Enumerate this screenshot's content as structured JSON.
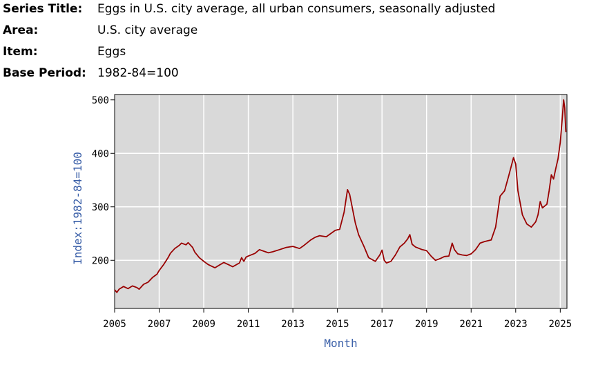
{
  "meta": {
    "series_title_label": "Series Title:",
    "series_title_value": "Eggs in U.S. city average, all urban consumers, seasonally adjusted",
    "area_label": "Area:",
    "area_value": "U.S. city average",
    "item_label": "Item:",
    "item_value": "Eggs",
    "base_period_label": "Base Period:",
    "base_period_value": "1982-84=100"
  },
  "colors": {
    "plot_background": "#d9d9d9",
    "grid": "#ffffff",
    "line": "#990000",
    "axis_title": "#3a5fa8"
  },
  "chart_data": {
    "type": "line",
    "title": "Eggs in U.S. city average, all urban consumers, seasonally adjusted",
    "xlabel": "Month",
    "ylabel": "Index:1982-84=100",
    "xlim": [
      2005,
      2025.3
    ],
    "ylim": [
      110,
      510
    ],
    "x_ticks": [
      2005,
      2007,
      2009,
      2011,
      2013,
      2015,
      2017,
      2019,
      2021,
      2023,
      2025
    ],
    "x_tick_labels": [
      "2005",
      "2007",
      "2009",
      "2011",
      "2013",
      "2015",
      "2017",
      "2019",
      "2021",
      "2023",
      "2025"
    ],
    "x_grid": [
      2005,
      2007,
      2009,
      2011,
      2013,
      2015,
      2017,
      2019,
      2021,
      2023,
      2025
    ],
    "y_ticks": [
      200,
      300,
      400,
      500
    ],
    "y_tick_labels": [
      "200",
      "300",
      "400",
      "500"
    ],
    "y_grid": [
      200,
      300,
      400
    ],
    "grid": true,
    "series": [
      {
        "name": "Eggs",
        "x": [
          2005.0,
          2005.1,
          2005.2,
          2005.4,
          2005.6,
          2005.8,
          2006.0,
          2006.1,
          2006.3,
          2006.5,
          2006.7,
          2006.9,
          2007.0,
          2007.2,
          2007.4,
          2007.5,
          2007.7,
          2007.9,
          2008.0,
          2008.2,
          2008.3,
          2008.5,
          2008.6,
          2008.8,
          2009.0,
          2009.2,
          2009.5,
          2009.7,
          2009.9,
          2010.1,
          2010.3,
          2010.6,
          2010.7,
          2010.8,
          2010.9,
          2011.0,
          2011.3,
          2011.5,
          2011.7,
          2011.9,
          2012.1,
          2012.4,
          2012.7,
          2013.0,
          2013.3,
          2013.5,
          2013.8,
          2014.0,
          2014.2,
          2014.5,
          2014.7,
          2014.9,
          2015.1,
          2015.3,
          2015.45,
          2015.55,
          2015.65,
          2015.8,
          2015.95,
          2016.2,
          2016.4,
          2016.7,
          2016.9,
          2017.0,
          2017.1,
          2017.2,
          2017.4,
          2017.6,
          2017.8,
          2018.0,
          2018.15,
          2018.25,
          2018.35,
          2018.5,
          2018.8,
          2019.0,
          2019.2,
          2019.4,
          2019.6,
          2019.8,
          2020.0,
          2020.15,
          2020.25,
          2020.4,
          2020.6,
          2020.8,
          2021.0,
          2021.2,
          2021.4,
          2021.6,
          2021.9,
          2022.1,
          2022.3,
          2022.5,
          2022.7,
          2022.9,
          2023.0,
          2023.1,
          2023.3,
          2023.5,
          2023.7,
          2023.9,
          2024.0,
          2024.1,
          2024.2,
          2024.4,
          2024.5,
          2024.6,
          2024.7,
          2024.8,
          2024.9,
          2025.0,
          2025.1,
          2025.15,
          2025.2,
          2025.25
        ],
        "values": [
          145,
          140,
          146,
          151,
          147,
          152,
          149,
          146,
          155,
          159,
          168,
          174,
          181,
          192,
          205,
          213,
          222,
          228,
          232,
          229,
          233,
          224,
          215,
          205,
          198,
          192,
          186,
          191,
          196,
          192,
          188,
          195,
          205,
          198,
          206,
          208,
          213,
          220,
          217,
          214,
          216,
          220,
          224,
          226,
          222,
          228,
          238,
          243,
          246,
          244,
          250,
          256,
          258,
          290,
          332,
          323,
          302,
          270,
          248,
          225,
          205,
          198,
          210,
          219,
          200,
          195,
          198,
          210,
          225,
          232,
          240,
          248,
          230,
          225,
          220,
          218,
          208,
          200,
          203,
          207,
          208,
          232,
          220,
          212,
          210,
          209,
          212,
          220,
          232,
          235,
          238,
          262,
          320,
          330,
          360,
          392,
          380,
          330,
          285,
          268,
          262,
          272,
          285,
          310,
          298,
          305,
          330,
          360,
          352,
          372,
          390,
          420,
          470,
          500,
          485,
          440
        ]
      }
    ]
  }
}
